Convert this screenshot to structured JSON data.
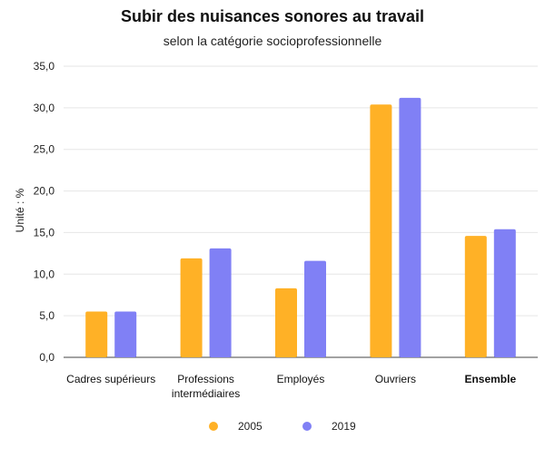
{
  "chart_data": {
    "type": "bar",
    "title": "Subir des nuisances sonores au travail",
    "subtitle": "selon la catégorie socioprofessionnelle",
    "xlabel": "",
    "ylabel": "Unité : %",
    "ylim": [
      0,
      35
    ],
    "yticks": [
      "0,0",
      "5,0",
      "10,0",
      "15,0",
      "20,0",
      "25,0",
      "30,0",
      "35,0"
    ],
    "categories": [
      "Cadres supérieurs",
      "Professions intermédiaires",
      "Employés",
      "Ouvriers",
      "Ensemble"
    ],
    "category_lines": [
      [
        "Cadres supérieurs"
      ],
      [
        "Professions",
        "intermédiaires"
      ],
      [
        "Employés"
      ],
      [
        "Ouvriers"
      ],
      [
        "Ensemble"
      ]
    ],
    "bold_category": "Ensemble",
    "series": [
      {
        "name": "2005",
        "color": "#FFB126",
        "values": [
          5.5,
          11.9,
          8.3,
          30.4,
          14.6
        ]
      },
      {
        "name": "2019",
        "color": "#8080F5",
        "values": [
          5.5,
          13.1,
          11.6,
          31.2,
          15.4
        ]
      }
    ],
    "grid": true,
    "legend_position": "bottom"
  }
}
